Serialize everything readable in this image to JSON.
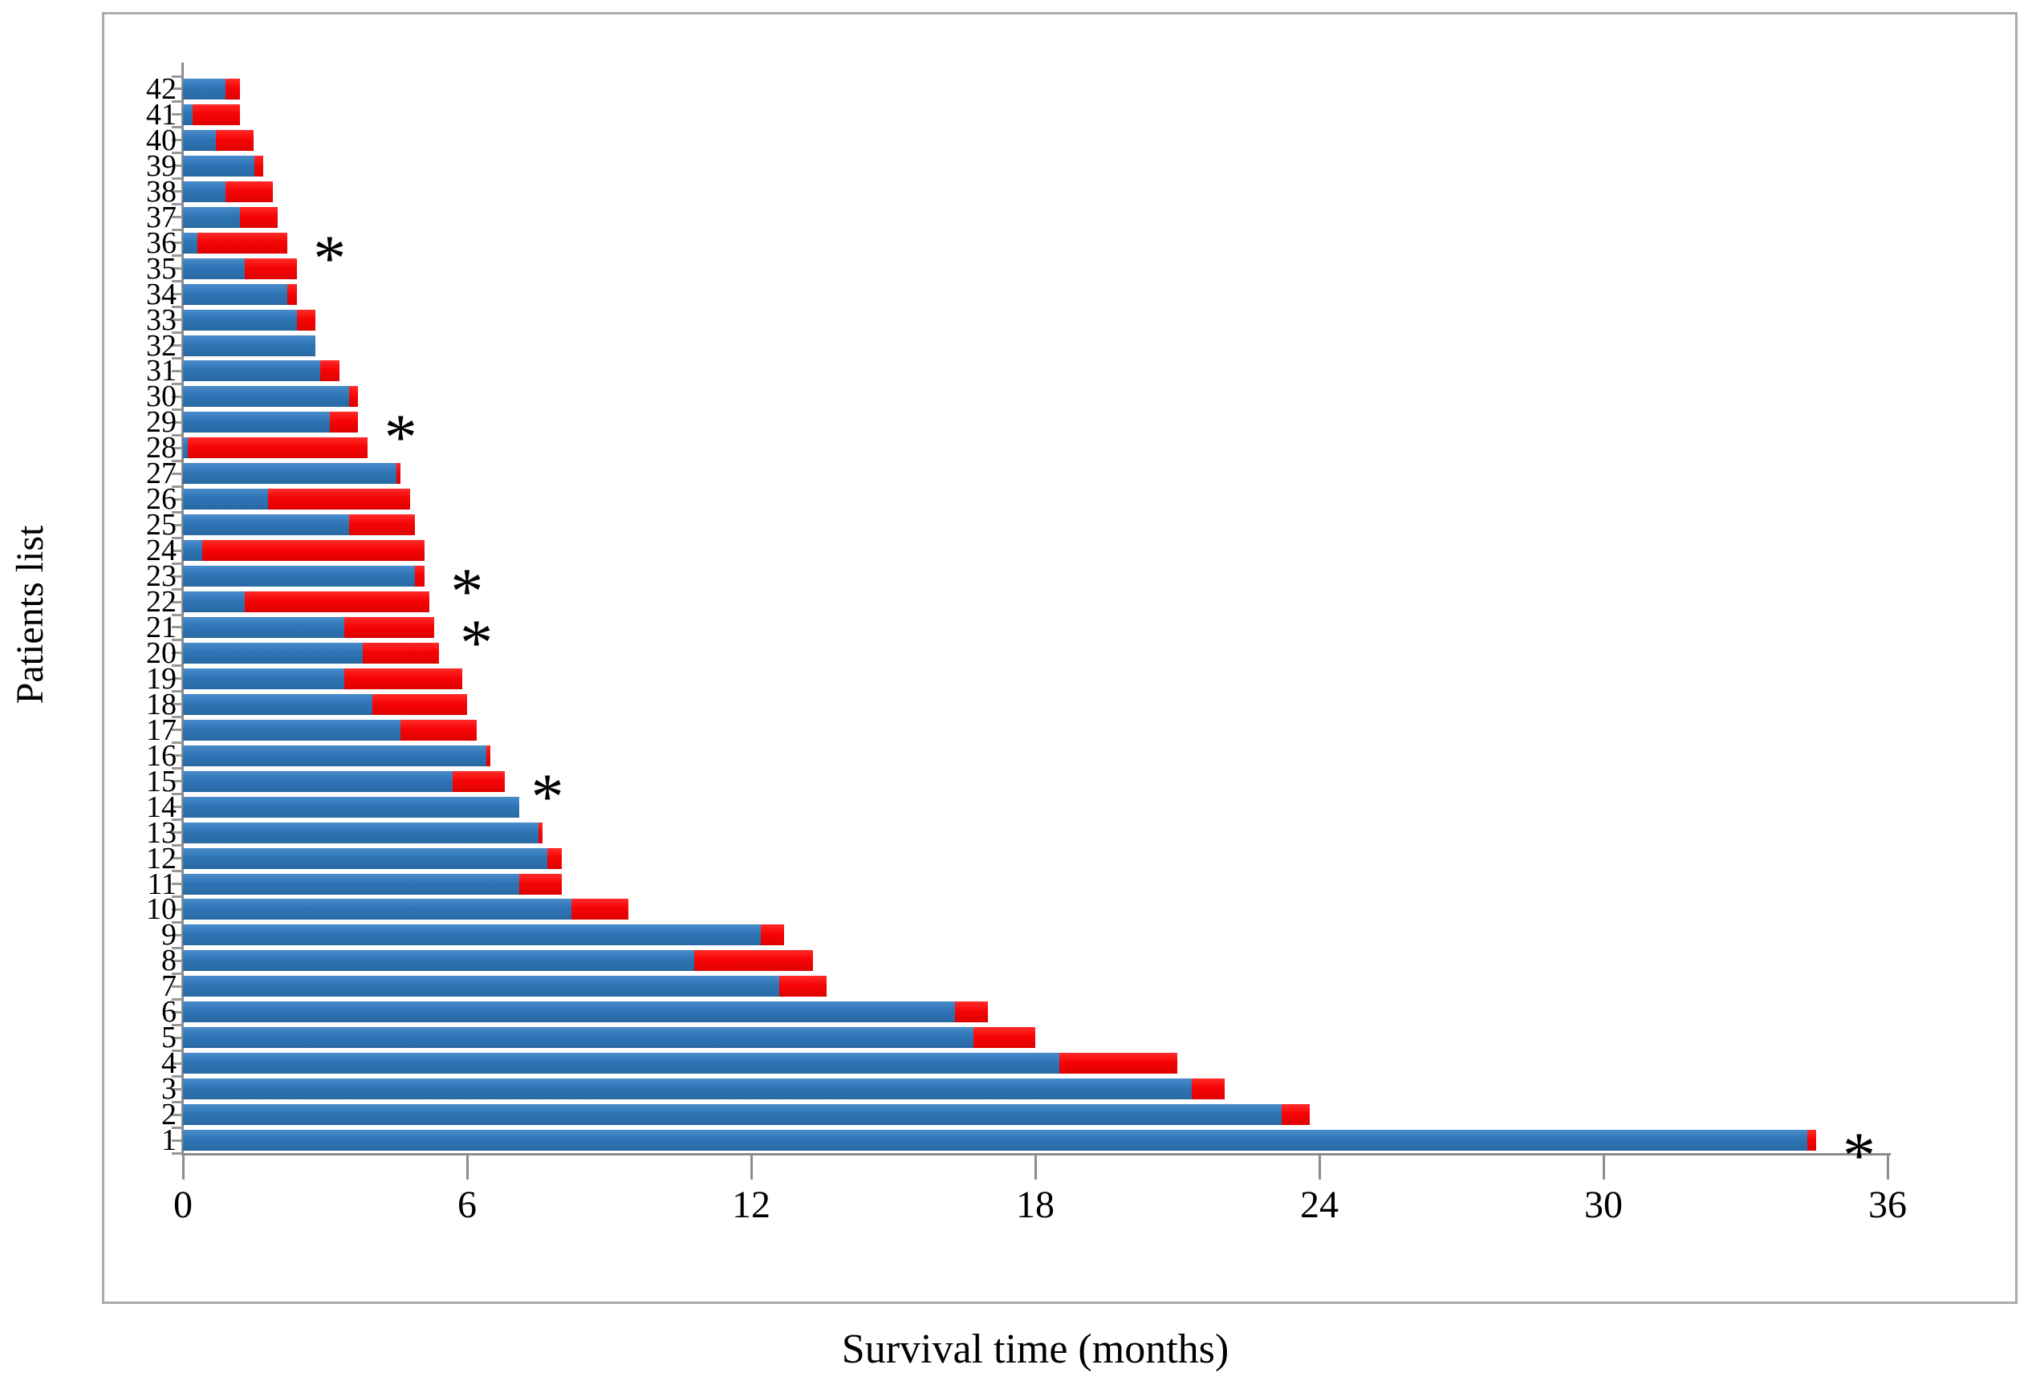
{
  "figure": {
    "y_axis_title": "Patients list",
    "x_axis_title": "Survival time (months)",
    "asterisk_glyph": "*",
    "colors": {
      "blue_segment": "#2e75b6",
      "red_segment": "#f70404",
      "axis": "#8c8c8c",
      "border": "#ababab",
      "text": "#000000"
    }
  },
  "chart_data": {
    "type": "bar",
    "orientation": "horizontal",
    "stacked": true,
    "title": "",
    "xlabel": "Survival time (months)",
    "ylabel": "Patients list",
    "xlim": [
      0,
      36
    ],
    "x_ticks": [
      "0",
      "6",
      "12",
      "18",
      "24",
      "30",
      "36"
    ],
    "grid": false,
    "legend": "none",
    "series_meaning": [
      "blue-first-segment-months",
      "red-second-segment-months"
    ],
    "rows_display_top_to_bottom": [
      {
        "patient": "42",
        "blue": 0.9,
        "red": 0.3,
        "total": 1.2,
        "asterisk": false
      },
      {
        "patient": "41",
        "blue": 0.2,
        "red": 1.0,
        "total": 1.2,
        "asterisk": false
      },
      {
        "patient": "40",
        "blue": 0.7,
        "red": 0.8,
        "total": 1.5,
        "asterisk": false
      },
      {
        "patient": "39",
        "blue": 1.5,
        "red": 0.2,
        "total": 1.7,
        "asterisk": false
      },
      {
        "patient": "38",
        "blue": 0.9,
        "red": 1.0,
        "total": 1.9,
        "asterisk": false
      },
      {
        "patient": "37",
        "blue": 1.2,
        "red": 0.8,
        "total": 2.0,
        "asterisk": false
      },
      {
        "patient": "36",
        "blue": 0.3,
        "red": 1.9,
        "total": 2.2,
        "asterisk": true
      },
      {
        "patient": "35",
        "blue": 1.3,
        "red": 1.1,
        "total": 2.4,
        "asterisk": false
      },
      {
        "patient": "34",
        "blue": 2.2,
        "red": 0.2,
        "total": 2.4,
        "asterisk": false
      },
      {
        "patient": "33",
        "blue": 2.4,
        "red": 0.4,
        "total": 2.8,
        "asterisk": false
      },
      {
        "patient": "32",
        "blue": 2.8,
        "red": 0.0,
        "total": 2.8,
        "asterisk": false
      },
      {
        "patient": "31",
        "blue": 2.9,
        "red": 0.4,
        "total": 3.3,
        "asterisk": false
      },
      {
        "patient": "30",
        "blue": 3.5,
        "red": 0.2,
        "total": 3.7,
        "asterisk": false
      },
      {
        "patient": "29",
        "blue": 3.1,
        "red": 0.6,
        "total": 3.7,
        "asterisk": true
      },
      {
        "patient": "28",
        "blue": 0.1,
        "red": 3.8,
        "total": 3.9,
        "asterisk": false
      },
      {
        "patient": "27",
        "blue": 4.5,
        "red": 0.1,
        "total": 4.6,
        "asterisk": false
      },
      {
        "patient": "26",
        "blue": 1.8,
        "red": 3.0,
        "total": 4.8,
        "asterisk": false
      },
      {
        "patient": "25",
        "blue": 3.5,
        "red": 1.4,
        "total": 4.9,
        "asterisk": false
      },
      {
        "patient": "24",
        "blue": 0.4,
        "red": 4.7,
        "total": 5.1,
        "asterisk": false
      },
      {
        "patient": "23",
        "blue": 4.9,
        "red": 0.2,
        "total": 5.1,
        "asterisk": true
      },
      {
        "patient": "22",
        "blue": 1.3,
        "red": 3.9,
        "total": 5.2,
        "asterisk": false
      },
      {
        "patient": "21",
        "blue": 3.4,
        "red": 1.9,
        "total": 5.3,
        "asterisk": true
      },
      {
        "patient": "20",
        "blue": 3.8,
        "red": 1.6,
        "total": 5.4,
        "asterisk": false
      },
      {
        "patient": "19",
        "blue": 3.4,
        "red": 2.5,
        "total": 5.9,
        "asterisk": false
      },
      {
        "patient": "18",
        "blue": 4.0,
        "red": 2.0,
        "total": 6.0,
        "asterisk": false
      },
      {
        "patient": "17",
        "blue": 4.6,
        "red": 1.6,
        "total": 6.2,
        "asterisk": false
      },
      {
        "patient": "16",
        "blue": 6.4,
        "red": 0.1,
        "total": 6.5,
        "asterisk": false
      },
      {
        "patient": "15",
        "blue": 5.7,
        "red": 1.1,
        "total": 6.8,
        "asterisk": true
      },
      {
        "patient": "14",
        "blue": 7.1,
        "red": 0.0,
        "total": 7.1,
        "asterisk": false
      },
      {
        "patient": "13",
        "blue": 7.5,
        "red": 0.1,
        "total": 7.6,
        "asterisk": false
      },
      {
        "patient": "12",
        "blue": 7.7,
        "red": 0.3,
        "total": 8.0,
        "asterisk": false
      },
      {
        "patient": "11",
        "blue": 7.1,
        "red": 0.9,
        "total": 8.0,
        "asterisk": false
      },
      {
        "patient": "10",
        "blue": 8.2,
        "red": 1.2,
        "total": 9.4,
        "asterisk": false
      },
      {
        "patient": "9",
        "blue": 12.2,
        "red": 0.5,
        "total": 12.7,
        "asterisk": false
      },
      {
        "patient": "8",
        "blue": 10.8,
        "red": 2.5,
        "total": 13.3,
        "asterisk": false
      },
      {
        "patient": "7",
        "blue": 12.6,
        "red": 1.0,
        "total": 13.6,
        "asterisk": false
      },
      {
        "patient": "6",
        "blue": 16.3,
        "red": 0.7,
        "total": 17.0,
        "asterisk": false
      },
      {
        "patient": "5",
        "blue": 16.7,
        "red": 1.3,
        "total": 18.0,
        "asterisk": false
      },
      {
        "patient": "4",
        "blue": 18.5,
        "red": 2.5,
        "total": 21.0,
        "asterisk": false
      },
      {
        "patient": "3",
        "blue": 21.3,
        "red": 0.7,
        "total": 22.0,
        "asterisk": false
      },
      {
        "patient": "2",
        "blue": 23.2,
        "red": 0.6,
        "total": 23.8,
        "asterisk": false
      },
      {
        "patient": "1",
        "blue": 34.3,
        "red": 0.2,
        "total": 34.5,
        "asterisk": true
      }
    ]
  }
}
